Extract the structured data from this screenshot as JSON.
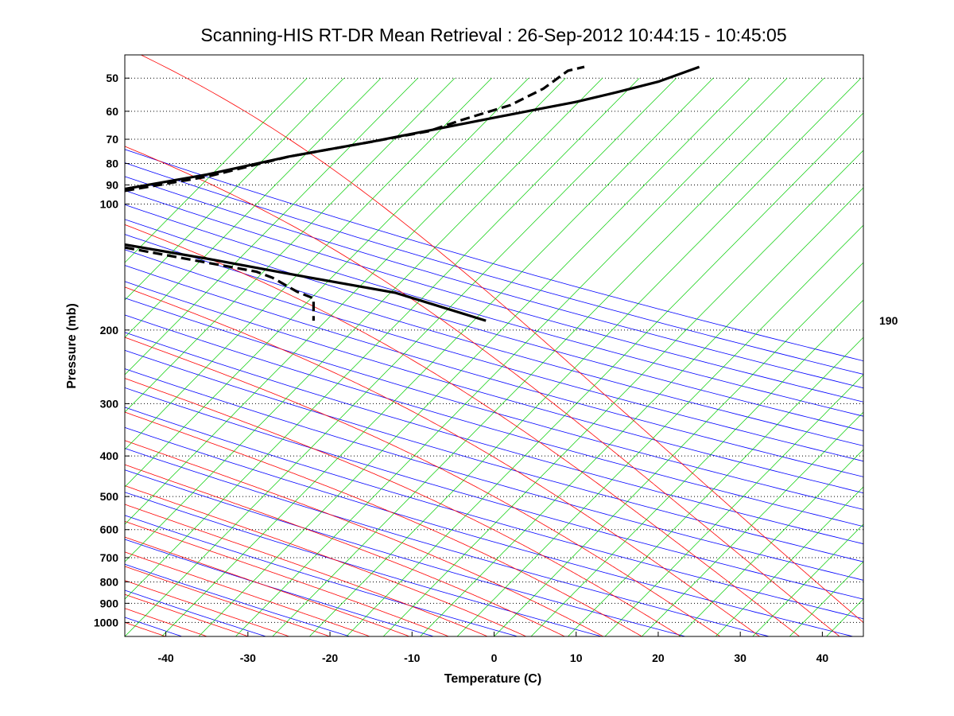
{
  "chart_data": {
    "type": "line",
    "diagram": "skew-T log-P",
    "title": "Scanning-HIS RT-DR Mean Retrieval : 26-Sep-2012 10:44:15 - 10:45:05",
    "xlabel": "Temperature (C)",
    "ylabel": "Pressure (mb)",
    "xlim": [
      -45,
      45
    ],
    "ylim": [
      1080,
      44
    ],
    "y_scale": "log",
    "x_ticks": [
      -40,
      -30,
      -20,
      -10,
      0,
      10,
      20,
      30,
      40
    ],
    "y_ticks": [
      50,
      60,
      70,
      80,
      90,
      100,
      200,
      300,
      400,
      500,
      600,
      700,
      800,
      900,
      1000
    ],
    "grid": "horizontal dotted at pressure ticks",
    "side_label": "190",
    "background_lines": [
      {
        "name": "dry adiabats",
        "color": "#0000ff"
      },
      {
        "name": "moist adiabats",
        "color": "#ff0000"
      },
      {
        "name": "mixing ratio lines",
        "color": "#00cc00"
      }
    ],
    "series": [
      {
        "style": "solid",
        "color": "#000000",
        "points": [
          [
            -45,
            92
          ],
          [
            -35,
            85
          ],
          [
            -25,
            77
          ],
          [
            -15,
            71
          ],
          [
            -5,
            65
          ],
          [
            5,
            59.5
          ],
          [
            10,
            57
          ],
          [
            15,
            54
          ],
          [
            20,
            51
          ],
          [
            25,
            47
          ]
        ]
      },
      {
        "style": "dashed",
        "color": "#000000",
        "points": [
          [
            -45,
            93
          ],
          [
            -35,
            86
          ],
          [
            -25,
            77
          ],
          [
            -15,
            71
          ],
          [
            -8,
            67
          ],
          [
            -4,
            63
          ],
          [
            2,
            58
          ],
          [
            6,
            53
          ],
          [
            9,
            48
          ],
          [
            11,
            47
          ]
        ]
      },
      {
        "style": "solid",
        "color": "#000000",
        "points": [
          [
            -45,
            125
          ],
          [
            -35,
            135
          ],
          [
            -24,
            148
          ],
          [
            -12,
            163
          ],
          [
            -1,
            190
          ]
        ]
      },
      {
        "style": "dashed",
        "color": "#000000",
        "points": [
          [
            -45,
            127
          ],
          [
            -35,
            138
          ],
          [
            -29,
            145
          ],
          [
            -27,
            150
          ],
          [
            -24,
            162
          ],
          [
            -22,
            168
          ],
          [
            -22,
            190
          ]
        ]
      }
    ]
  }
}
